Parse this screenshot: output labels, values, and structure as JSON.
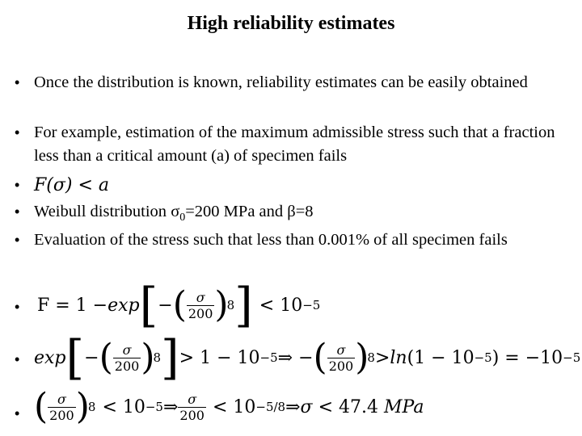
{
  "title": "High reliability estimates",
  "bullet_glyph": "•",
  "bullets": [
    {
      "text": "Once the distribution is known, reliability estimates can be easily obtained"
    },
    {
      "text": "For example, estimation of the maximum admissible stress such that a fraction less than a critical amount (a) of specimen fails"
    },
    {
      "text": "F(σ) < a"
    },
    {
      "text": "Weibull distribution σ0=200 MPa and β=8"
    },
    {
      "text": "Evaluation of the stress such that less than 0.001% of all specimen fails"
    }
  ],
  "weibull": {
    "prefix": "Weibull distribution ",
    "sigma": "σ",
    "sub": "0",
    "rest": "=200 MPa and β=8"
  },
  "eq1": {
    "lhs": "F = 1 − ",
    "exp": "exp",
    "minus": "−",
    "num": "σ",
    "den": "200",
    "power": "8",
    "rhs": "< 10",
    "rhs_exp": "−5"
  },
  "eq2": {
    "exp": "exp",
    "minus": "−",
    "num": "σ",
    "den": "200",
    "power": "8",
    "mid": "> 1 − 10",
    "mid_exp": "−5",
    "implies": "⇒ −",
    "num2": "σ",
    "den2": "200",
    "power2": "8",
    "tail_a": "> ",
    "ln": "ln",
    "tail_b": "(1 − 10",
    "tail_exp": "−5",
    "tail_c": ") = −10",
    "tail_exp2": "−5"
  },
  "eq3": {
    "num": "σ",
    "den": "200",
    "power": "8",
    "part1": "< 10",
    "exp1": "−5",
    "implies1": " ⇒ ",
    "num2": "σ",
    "den2": "200",
    "part2": "< 10",
    "exp2": "−5/8",
    "implies2": " ⇒ ",
    "sigma": "σ",
    "part3": " < 47.4 ",
    "unit": "MPa"
  }
}
